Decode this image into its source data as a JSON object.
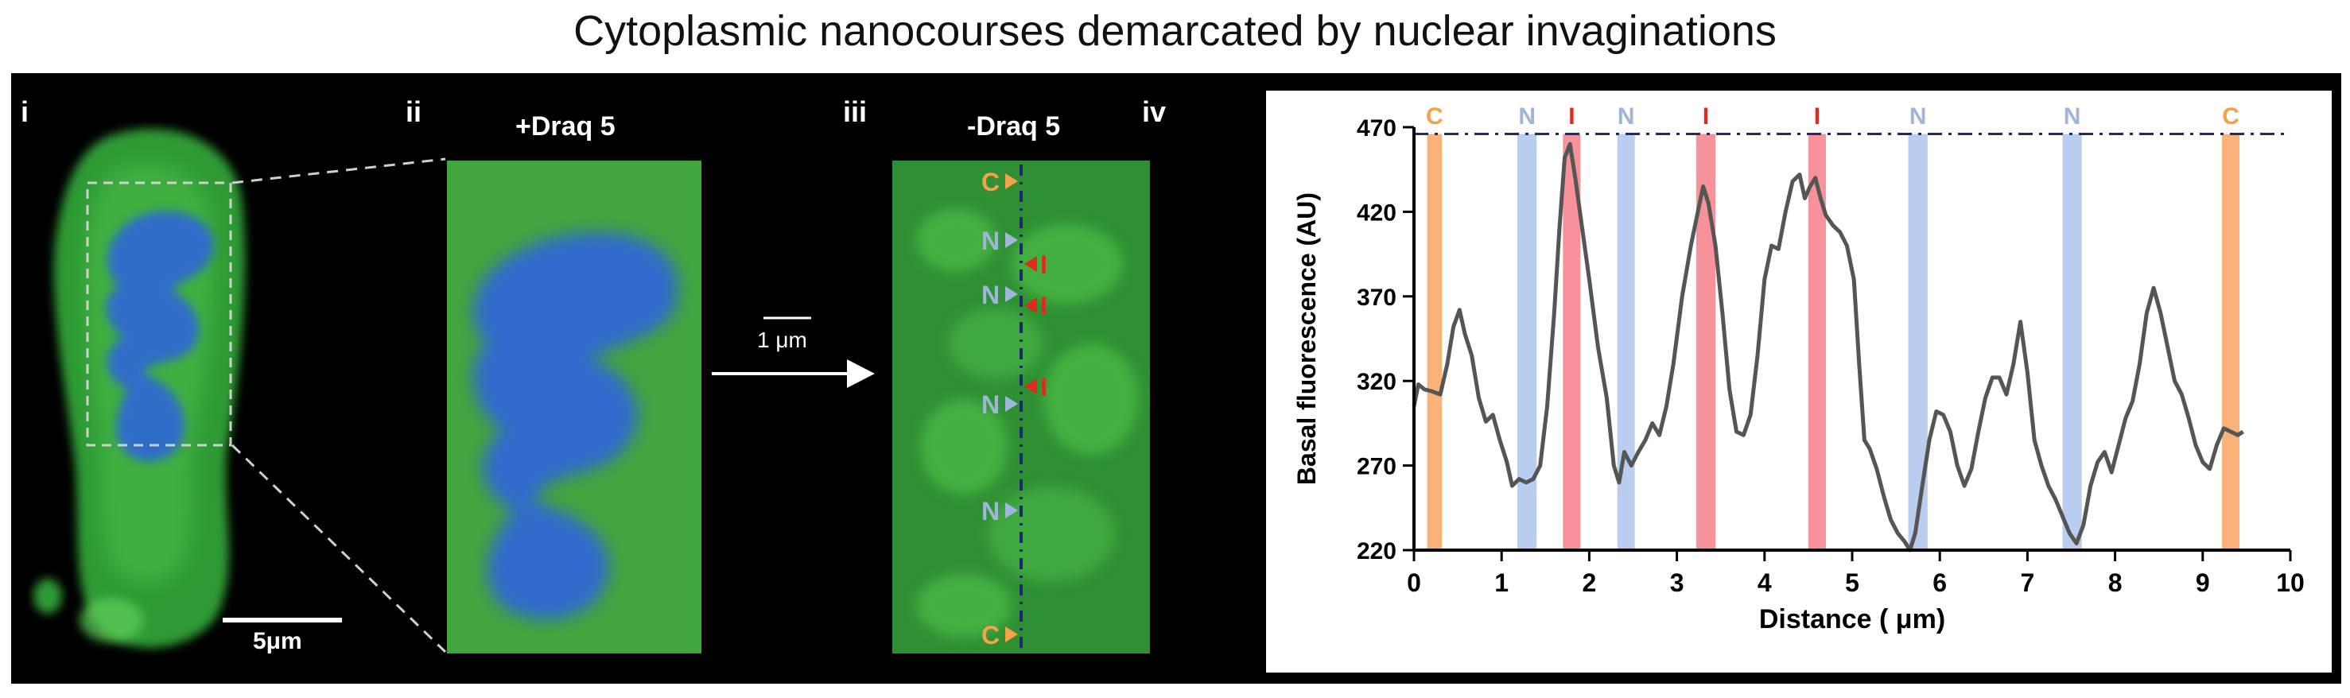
{
  "figure": {
    "title": "Cytoplasmic nanocourses demarcated by nuclear invaginations",
    "panels": {
      "i": "i",
      "ii": "ii",
      "iii": "iii",
      "iv": "iv"
    },
    "labels": {
      "with_draq5": "+Draq 5",
      "without_draq5": "-Draq 5",
      "scale_5um": "5μm",
      "scale_1um": "1 μm"
    },
    "markers": [
      {
        "letter": "C",
        "color": "#f5a04a"
      },
      {
        "letter": "N",
        "color": "#9fb6d8"
      },
      {
        "letter": "I",
        "color": "#e02a1a"
      },
      {
        "letter": "N",
        "color": "#9fb6d8"
      },
      {
        "letter": "I",
        "color": "#e02a1a"
      },
      {
        "letter": "I",
        "color": "#e02a1a"
      },
      {
        "letter": "N",
        "color": "#9fb6d8"
      },
      {
        "letter": "N",
        "color": "#9fb6d8"
      },
      {
        "letter": "C",
        "color": "#f5a04a"
      }
    ],
    "colors": {
      "cytoplasm": "#3fae3f",
      "nucleus": "#2f66d8",
      "marker_c": "#f5a04a",
      "marker_n": "#9fb6d8",
      "marker_i": "#e02a1a",
      "band_c": "#f8b27a",
      "band_n": "#b9cdef",
      "band_i": "#f7919a",
      "line": "#555555"
    }
  },
  "chart_data": {
    "type": "line",
    "title": "",
    "xlabel": "Distance ( μm)",
    "ylabel": "Basal fluorescence (AU)",
    "xlim": [
      0,
      10
    ],
    "ylim": [
      220,
      470
    ],
    "xticks": [
      "0",
      "1",
      "2",
      "3",
      "4",
      "5",
      "6",
      "7",
      "8",
      "9",
      "10"
    ],
    "yticks": [
      "220",
      "270",
      "320",
      "370",
      "420",
      "470"
    ],
    "reference_line": 466,
    "bands": [
      {
        "label": "C",
        "type": "C",
        "x0": 0.15,
        "x1": 0.32
      },
      {
        "label": "N",
        "type": "N",
        "x0": 1.18,
        "x1": 1.4
      },
      {
        "label": "I",
        "type": "I",
        "x0": 1.7,
        "x1": 1.9
      },
      {
        "label": "N",
        "type": "N",
        "x0": 2.32,
        "x1": 2.52
      },
      {
        "label": "I",
        "type": "I",
        "x0": 3.22,
        "x1": 3.44
      },
      {
        "label": "I",
        "type": "I",
        "x0": 4.5,
        "x1": 4.7
      },
      {
        "label": "N",
        "type": "N",
        "x0": 5.64,
        "x1": 5.86
      },
      {
        "label": "N",
        "type": "N",
        "x0": 7.4,
        "x1": 7.62
      },
      {
        "label": "C",
        "type": "C",
        "x0": 9.22,
        "x1": 9.42
      }
    ],
    "x": [
      0.0,
      0.05,
      0.12,
      0.2,
      0.3,
      0.38,
      0.45,
      0.52,
      0.58,
      0.66,
      0.74,
      0.82,
      0.9,
      0.98,
      1.06,
      1.12,
      1.2,
      1.28,
      1.36,
      1.44,
      1.52,
      1.6,
      1.66,
      1.72,
      1.78,
      1.84,
      1.92,
      2.0,
      2.1,
      2.2,
      2.28,
      2.34,
      2.4,
      2.48,
      2.56,
      2.64,
      2.72,
      2.8,
      2.88,
      2.96,
      3.06,
      3.16,
      3.24,
      3.3,
      3.36,
      3.44,
      3.52,
      3.6,
      3.68,
      3.76,
      3.84,
      3.92,
      4.0,
      4.08,
      4.16,
      4.24,
      4.32,
      4.4,
      4.46,
      4.52,
      4.58,
      4.64,
      4.7,
      4.78,
      4.86,
      4.94,
      5.02,
      5.08,
      5.14,
      5.2,
      5.28,
      5.36,
      5.44,
      5.52,
      5.6,
      5.66,
      5.72,
      5.8,
      5.88,
      5.96,
      6.04,
      6.12,
      6.2,
      6.28,
      6.36,
      6.44,
      6.52,
      6.6,
      6.68,
      6.76,
      6.84,
      6.92,
      7.0,
      7.08,
      7.16,
      7.24,
      7.32,
      7.4,
      7.48,
      7.56,
      7.64,
      7.72,
      7.8,
      7.88,
      7.96,
      8.04,
      8.12,
      8.2,
      8.28,
      8.36,
      8.44,
      8.52,
      8.6,
      8.68,
      8.76,
      8.84,
      8.92,
      9.0,
      9.08,
      9.16,
      9.24,
      9.32,
      9.4,
      9.46
    ],
    "y": [
      305,
      318,
      315,
      314,
      312,
      330,
      352,
      362,
      348,
      335,
      310,
      296,
      300,
      285,
      272,
      258,
      262,
      260,
      262,
      270,
      305,
      360,
      410,
      452,
      460,
      440,
      410,
      380,
      340,
      310,
      270,
      260,
      278,
      270,
      278,
      285,
      295,
      288,
      305,
      330,
      370,
      400,
      420,
      435,
      425,
      400,
      360,
      315,
      290,
      288,
      300,
      335,
      380,
      400,
      398,
      420,
      438,
      442,
      428,
      435,
      440,
      428,
      418,
      412,
      408,
      400,
      380,
      330,
      285,
      280,
      268,
      252,
      238,
      230,
      225,
      220,
      230,
      258,
      285,
      302,
      300,
      290,
      270,
      258,
      268,
      290,
      310,
      322,
      322,
      312,
      330,
      355,
      325,
      285,
      270,
      258,
      250,
      240,
      230,
      224,
      235,
      258,
      272,
      278,
      266,
      282,
      298,
      308,
      330,
      360,
      375,
      360,
      340,
      320,
      312,
      298,
      282,
      272,
      268,
      282,
      292,
      290,
      288,
      290
    ]
  }
}
